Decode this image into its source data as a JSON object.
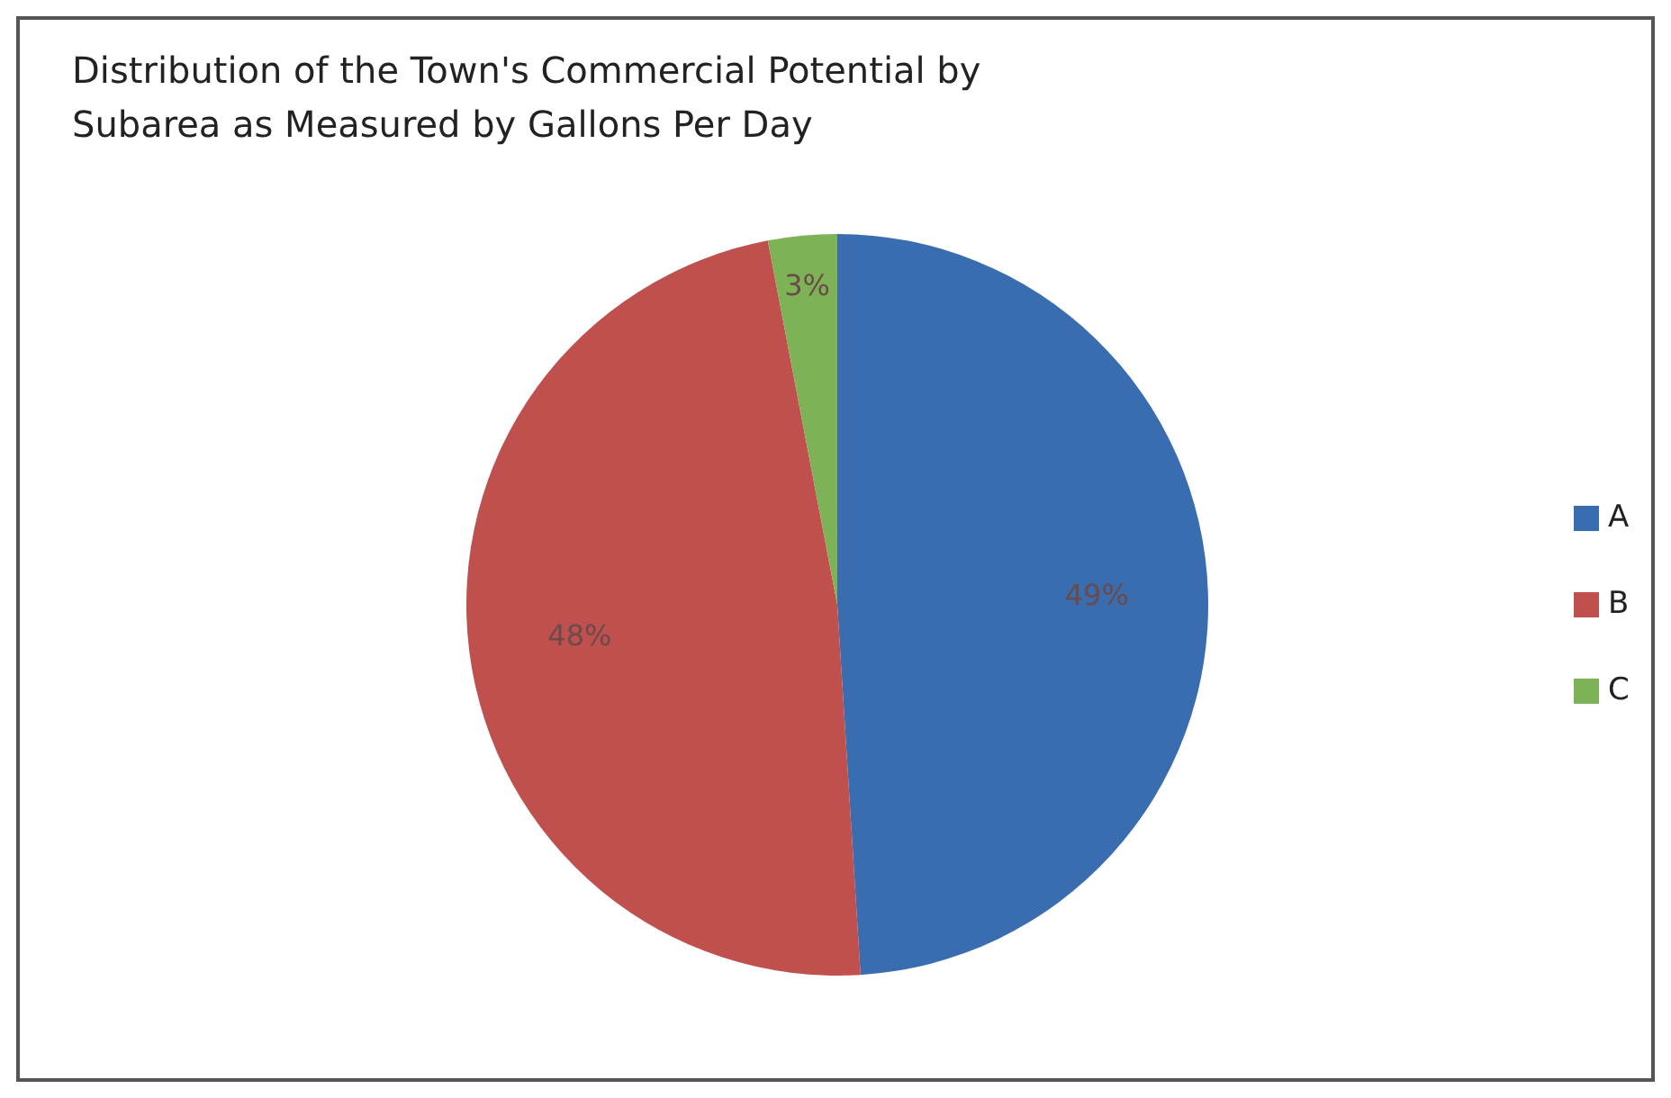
{
  "chart_data": {
    "type": "pie",
    "title": "Distribution of the Town's Commercial Potential by Subarea as Measured by Gallons Per Day",
    "categories": [
      "A",
      "B",
      "C"
    ],
    "values": [
      49,
      48,
      3
    ],
    "colors": [
      "#3a6db0",
      "#c0504d",
      "#7db356"
    ],
    "value_labels": [
      "49%",
      "48%",
      "3%"
    ],
    "legend": "right"
  }
}
